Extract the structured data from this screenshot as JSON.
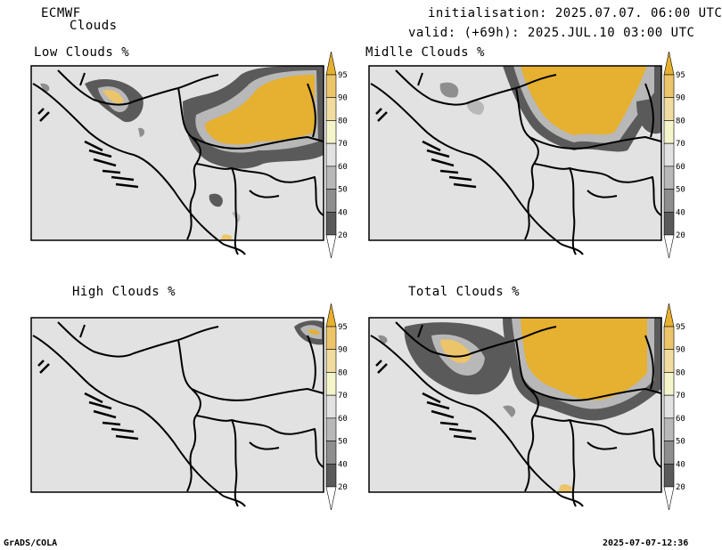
{
  "header": {
    "model": "ECMWF",
    "product": "Clouds",
    "init": "initialisation: 2025.07.07. 06:00 UTC",
    "valid": "valid: (+69h): 2025.JUL.10 03:00 UTC"
  },
  "panels": [
    {
      "title": "Low Clouds %"
    },
    {
      "title": "Midlle Clouds %"
    },
    {
      "title": "High Clouds %"
    },
    {
      "title": "Total Clouds %"
    }
  ],
  "colorbar": {
    "levels": [
      "95",
      "90",
      "80",
      "70",
      "60",
      "50",
      "40",
      "20"
    ],
    "colors": {
      "c95": "#e6b030",
      "c90": "#ecc46a",
      "c80": "#f0dca0",
      "c70": "#f5f5cc",
      "c60": "#e2e2e2",
      "c50": "#b8b8b8",
      "c40": "#8e8e8e",
      "c20": "#5a5a5a",
      "background": "#e2e2e2"
    }
  },
  "footer": {
    "left": "GrADS/COLA",
    "right": "2025-07-07-12:36"
  }
}
